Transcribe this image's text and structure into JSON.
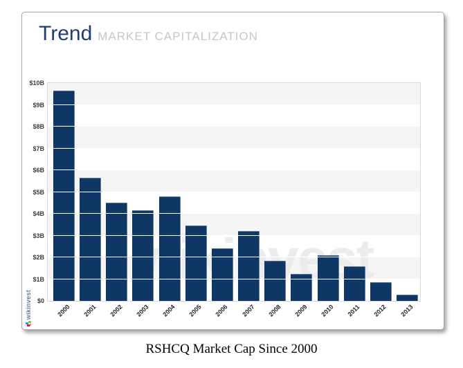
{
  "header": {
    "title": "Trend",
    "subtitle": "MARKET CAPITALIZATION"
  },
  "branding": {
    "logo_text": "wikinvest",
    "watermark_text": "wikinvest"
  },
  "caption": {
    "text": "RSHCQ Market Cap Since 2000"
  },
  "chart_data": {
    "type": "bar",
    "title": "Trend — Market Capitalization",
    "categories": [
      "2000",
      "2001",
      "2002",
      "2003",
      "2004",
      "2005",
      "2006",
      "2007",
      "2008",
      "2009",
      "2010",
      "2011",
      "2012",
      "2013"
    ],
    "values": [
      9.65,
      5.65,
      4.5,
      4.15,
      4.8,
      3.45,
      2.4,
      3.2,
      1.85,
      1.25,
      2.1,
      1.6,
      0.85,
      0.3
    ],
    "unit": "USD billions",
    "xlabel": "",
    "ylabel": "",
    "ylim": [
      0,
      10
    ],
    "ytick_step": 1,
    "yticks": [
      "$0",
      "$1B",
      "$2B",
      "$3B",
      "$4B",
      "$5B",
      "$6B",
      "$7B",
      "$8B",
      "$9B",
      "$10B"
    ],
    "legend": "none",
    "grid": "alternating horizontal bands, white gridlines over bars",
    "colors": {
      "bar": "#0f3765",
      "band_gray": "#f5f5f5",
      "gridline": "#ffffff",
      "plot_border": "#d9d9d9",
      "title_navy": "#1e3f74",
      "subtitle_gray": "#c7c7c7"
    }
  }
}
